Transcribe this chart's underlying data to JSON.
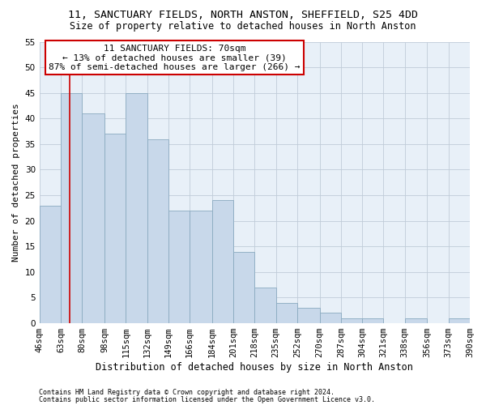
{
  "title1": "11, SANCTUARY FIELDS, NORTH ANSTON, SHEFFIELD, S25 4DD",
  "title2": "Size of property relative to detached houses in North Anston",
  "xlabel": "Distribution of detached houses by size in North Anston",
  "ylabel": "Number of detached properties",
  "footer1": "Contains HM Land Registry data © Crown copyright and database right 2024.",
  "footer2": "Contains public sector information licensed under the Open Government Licence v3.0.",
  "bin_edges": [
    46,
    63,
    80,
    98,
    115,
    132,
    149,
    166,
    184,
    201,
    218,
    235,
    252,
    270,
    287,
    304,
    321,
    338,
    356,
    373,
    390
  ],
  "bin_labels": [
    "46sqm",
    "63sqm",
    "80sqm",
    "98sqm",
    "115sqm",
    "132sqm",
    "149sqm",
    "166sqm",
    "184sqm",
    "201sqm",
    "218sqm",
    "235sqm",
    "252sqm",
    "270sqm",
    "287sqm",
    "304sqm",
    "321sqm",
    "338sqm",
    "356sqm",
    "373sqm",
    "390sqm"
  ],
  "values": [
    23,
    45,
    41,
    37,
    45,
    36,
    22,
    22,
    24,
    14,
    7,
    4,
    3,
    2,
    1,
    1,
    0,
    1,
    0,
    1
  ],
  "bar_color": "#c8d8ea",
  "bar_edge_color": "#8aaac0",
  "vline_x": 70,
  "vline_color": "#cc0000",
  "annotation_title": "11 SANCTUARY FIELDS: 70sqm",
  "annotation_line1": "← 13% of detached houses are smaller (39)",
  "annotation_line2": "87% of semi-detached houses are larger (266) →",
  "annotation_box_facecolor": "#ffffff",
  "annotation_box_edgecolor": "#cc0000",
  "ylim": [
    0,
    55
  ],
  "yticks": [
    0,
    5,
    10,
    15,
    20,
    25,
    30,
    35,
    40,
    45,
    50,
    55
  ],
  "bg_color": "#e8f0f8",
  "fig_bg_color": "#ffffff",
  "grid_color": "#c0ccd8",
  "title1_fontsize": 9.5,
  "title2_fontsize": 8.5,
  "xlabel_fontsize": 8.5,
  "ylabel_fontsize": 8,
  "tick_fontsize": 7.5,
  "annotation_fontsize": 8,
  "footer_fontsize": 6
}
